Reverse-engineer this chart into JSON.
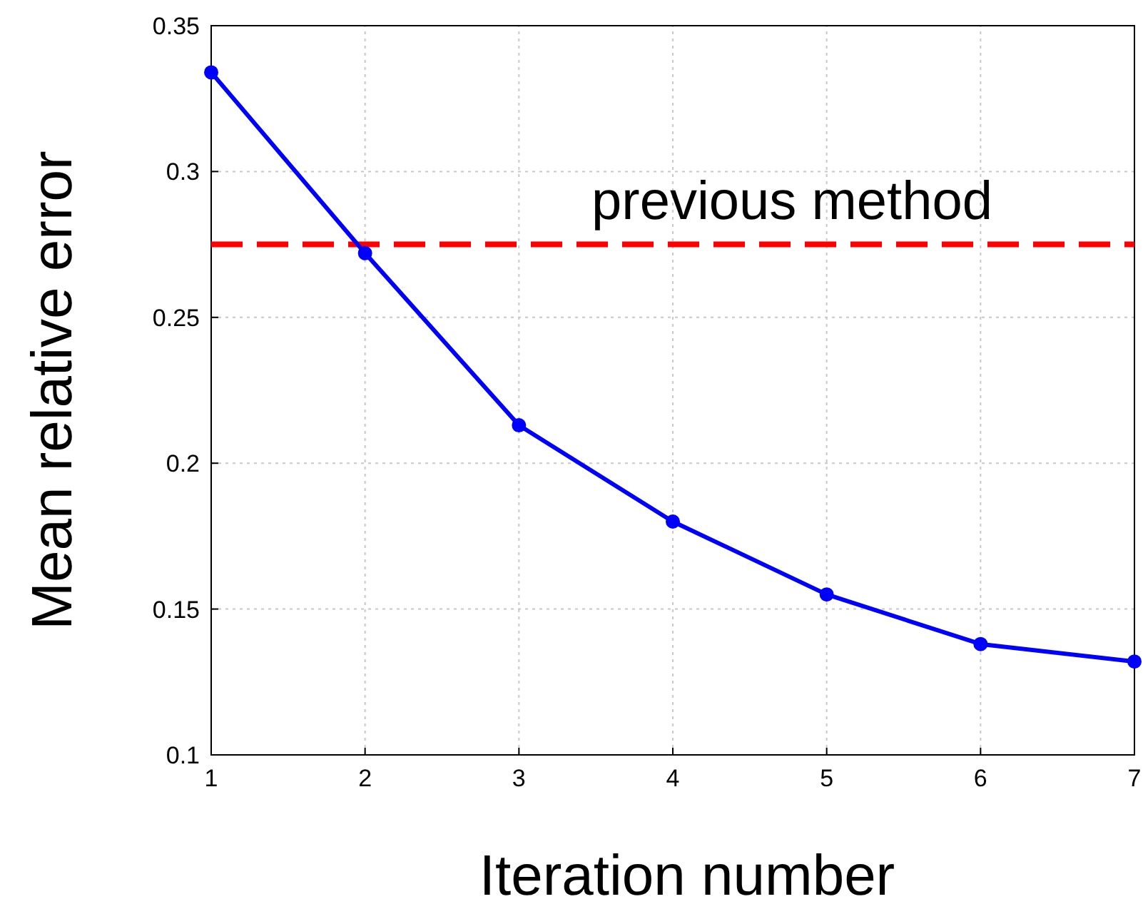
{
  "chart_data": {
    "type": "line",
    "xlabel": "Iteration number",
    "ylabel": "Mean relative error",
    "x": [
      1,
      2,
      3,
      4,
      5,
      6,
      7
    ],
    "series": [
      {
        "color": "#0000ff",
        "values": [
          0.334,
          0.272,
          0.213,
          0.18,
          0.155,
          0.138,
          0.132
        ]
      }
    ],
    "xlim": [
      1,
      7
    ],
    "xticks": [
      1,
      2,
      3,
      4,
      5,
      6,
      7
    ],
    "ylim": [
      0.1,
      0.35
    ],
    "yticks": [
      0.1,
      0.15,
      0.2,
      0.25,
      0.3,
      0.35
    ],
    "ref_lines": [
      {
        "axis": "y",
        "value": 0.275,
        "label": "previous method",
        "color": "#ff0000",
        "line_style": "dashed"
      }
    ],
    "grid": true,
    "marker": "circle",
    "line_style": "solid"
  }
}
